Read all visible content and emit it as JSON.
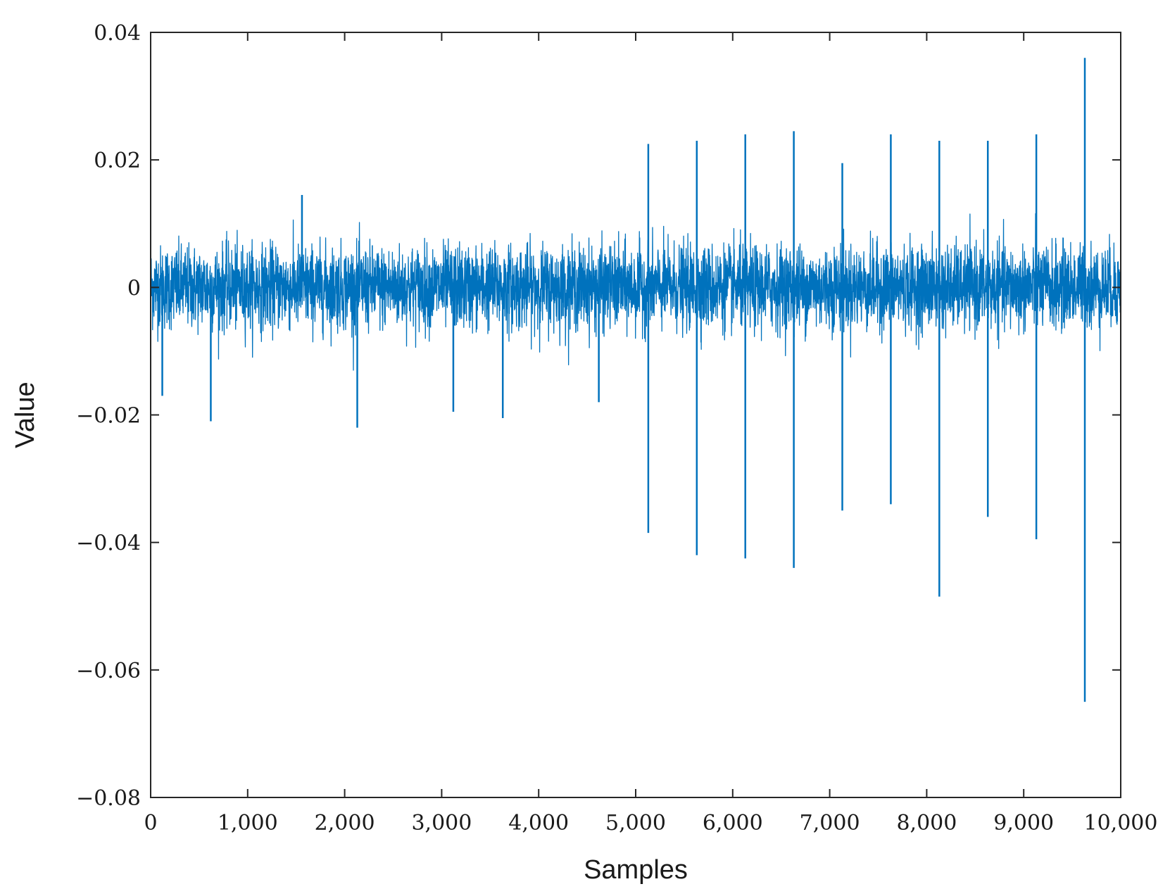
{
  "chart_data": {
    "type": "line",
    "title": "",
    "xlabel": "Samples",
    "ylabel": "Value",
    "xlim": [
      0,
      10000
    ],
    "ylim": [
      -0.08,
      0.04
    ],
    "x_ticks": [
      0,
      1000,
      2000,
      3000,
      4000,
      5000,
      6000,
      7000,
      8000,
      9000,
      10000
    ],
    "x_tick_labels": [
      "0",
      "1,000",
      "2,000",
      "3,000",
      "4,000",
      "5,000",
      "6,000",
      "7,000",
      "8,000",
      "9,000",
      "10,000"
    ],
    "y_ticks": [
      0.04,
      0.02,
      0,
      -0.02,
      -0.04,
      -0.06,
      -0.08
    ],
    "y_tick_labels": [
      "0.04",
      "0.02",
      "0",
      "−0.02",
      "−0.04",
      "−0.06",
      "−0.08"
    ],
    "grid": false,
    "color": "#0072BD",
    "series": [
      {
        "noise": {
          "n_samples": 10000,
          "amplitude_typical": 0.0085,
          "amplitude_max": 0.014
        },
        "spikes": [
          {
            "x": 120,
            "y": -0.017
          },
          {
            "x": 620,
            "y": -0.021
          },
          {
            "x": 1560,
            "y": 0.0145
          },
          {
            "x": 2130,
            "y": -0.022
          },
          {
            "x": 3120,
            "y": -0.0195
          },
          {
            "x": 3630,
            "y": -0.0205
          },
          {
            "x": 4620,
            "y": -0.018
          },
          {
            "x": 5130,
            "y": 0.0225
          },
          {
            "x": 5130,
            "y": -0.0385
          },
          {
            "x": 5630,
            "y": 0.023
          },
          {
            "x": 5630,
            "y": -0.042
          },
          {
            "x": 6130,
            "y": 0.024
          },
          {
            "x": 6130,
            "y": -0.0425
          },
          {
            "x": 6630,
            "y": 0.0245
          },
          {
            "x": 6630,
            "y": -0.044
          },
          {
            "x": 7130,
            "y": 0.0195
          },
          {
            "x": 7130,
            "y": -0.035
          },
          {
            "x": 7630,
            "y": 0.024
          },
          {
            "x": 7630,
            "y": -0.034
          },
          {
            "x": 8130,
            "y": 0.023
          },
          {
            "x": 8130,
            "y": -0.0485
          },
          {
            "x": 8630,
            "y": 0.023
          },
          {
            "x": 8630,
            "y": -0.036
          },
          {
            "x": 9130,
            "y": 0.024
          },
          {
            "x": 9130,
            "y": -0.0395
          },
          {
            "x": 9630,
            "y": 0.036
          },
          {
            "x": 9630,
            "y": -0.065
          }
        ]
      }
    ]
  }
}
